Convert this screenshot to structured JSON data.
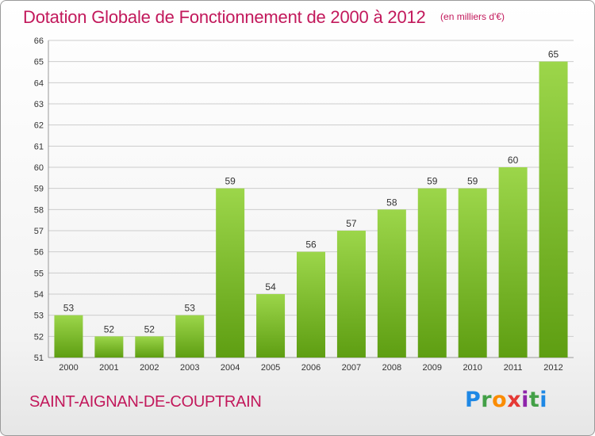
{
  "title": "Dotation Globale de Fonctionnement de 2000 à 2012",
  "subtitle": "(en milliers d'€)",
  "commune": "SAINT-AIGNAN-DE-COUPTRAIN",
  "logo": {
    "text": "Proxiti",
    "letters": [
      "P",
      "r",
      "o",
      "x",
      "i",
      "t",
      "i"
    ]
  },
  "colors": {
    "title": "#c2185b",
    "bar_light": "#9cd64a",
    "bar_dark": "#5e9e12",
    "grid": "#cccccc",
    "axis_text": "#333333"
  },
  "chart_data": {
    "type": "bar",
    "categories": [
      "2000",
      "2001",
      "2002",
      "2003",
      "2004",
      "2005",
      "2006",
      "2007",
      "2008",
      "2009",
      "2010",
      "2011",
      "2012"
    ],
    "values": [
      53,
      52,
      52,
      53,
      59,
      54,
      56,
      57,
      58,
      59,
      59,
      60,
      65
    ],
    "ylim": [
      51,
      66
    ],
    "yticks": [
      51,
      52,
      53,
      54,
      55,
      56,
      57,
      58,
      59,
      60,
      61,
      62,
      63,
      64,
      65,
      66
    ],
    "grid": true,
    "data_labels": true
  }
}
